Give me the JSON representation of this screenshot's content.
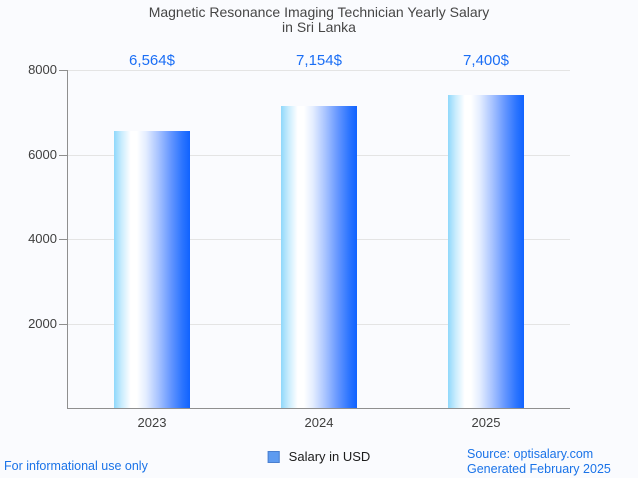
{
  "title": {
    "line1": "Magnetic Resonance Imaging Technician Yearly Salary",
    "line2": "in Sri Lanka"
  },
  "chart_data": {
    "type": "bar",
    "title": "Magnetic Resonance Imaging Technician Yearly Salary in Sri Lanka",
    "categories": [
      "2023",
      "2024",
      "2025"
    ],
    "series": [
      {
        "name": "Salary in USD",
        "values": [
          6564,
          7154,
          7400
        ]
      }
    ],
    "value_labels": [
      "6,564$",
      "7,154$",
      "7,400$"
    ],
    "ylim": [
      0,
      8000
    ],
    "yticks": [
      2000,
      4000,
      6000,
      8000
    ],
    "grid": true,
    "legend_position": "bottom",
    "colors": {
      "value_label": "#1a6ef5",
      "axis": "#8f8f8f",
      "gridline": "#e4e4e4",
      "bar_gradient": [
        [
          0,
          "#8fd8fb"
        ],
        [
          0.1,
          "#c9ecfd"
        ],
        [
          0.22,
          "#ffffff"
        ],
        [
          0.3,
          "#ffffff"
        ],
        [
          0.42,
          "#e4edff"
        ],
        [
          0.58,
          "#a9c4ff"
        ],
        [
          0.75,
          "#6496ff"
        ],
        [
          0.9,
          "#2b74ff"
        ],
        [
          1,
          "#1063ff"
        ]
      ]
    }
  },
  "legend": {
    "label": "Salary in USD",
    "swatch_color": "#5e9bf0",
    "swatch_border": "#4a7fcf"
  },
  "footer": {
    "left": "For informational use only",
    "source": "Source: optisalary.com",
    "generated": "Generated February 2025",
    "link_color": "#1a73e8"
  }
}
